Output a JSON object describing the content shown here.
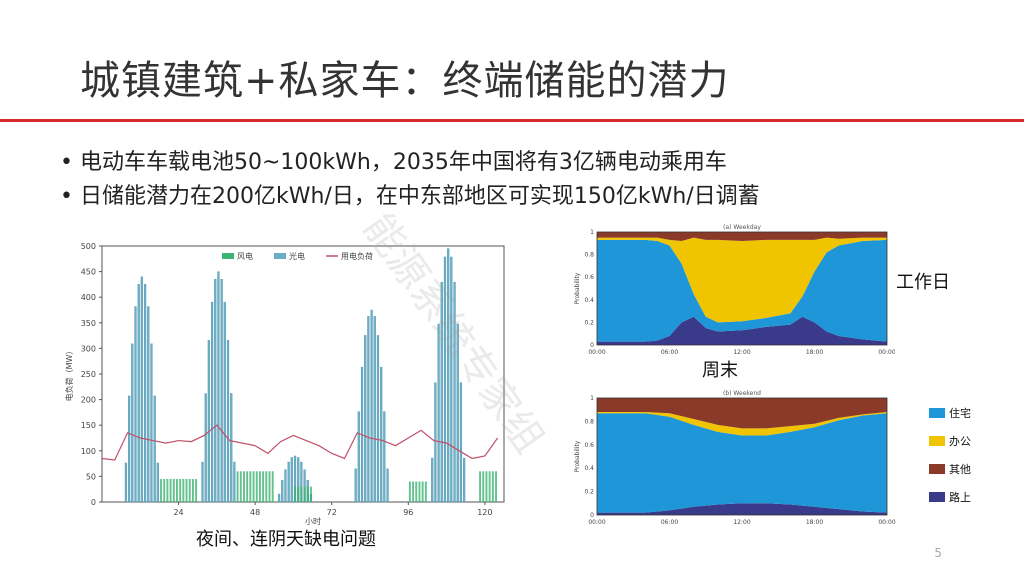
{
  "slide": {
    "title": "城镇建筑+私家车：终端储能的潜力",
    "bullets": [
      "电动车车载电池50~100kWh，2035年中国将有3亿辆电动乘用车",
      "日储能潜力在200亿kWh/日，在中东部地区可实现150亿kWh/日调蓄"
    ],
    "left_caption": "夜间、连阴天缺电问题",
    "weekday_label": "工作日",
    "weekend_label": "周末",
    "page_number": "5",
    "watermark": "能源系统专家组"
  },
  "chart_data": [
    {
      "type": "bar",
      "title": "",
      "xlabel": "小时",
      "ylabel": "电负荷（MW）",
      "ylim": [
        0,
        500
      ],
      "xlim": [
        0,
        126
      ],
      "yticks": [
        "0",
        "50",
        "100",
        "150",
        "200",
        "250",
        "300",
        "350",
        "400",
        "450",
        "500"
      ],
      "xticks": [
        "24",
        "48",
        "72",
        "96",
        "120"
      ],
      "legend": [
        "风电",
        "光电",
        "用电负荷"
      ],
      "colors": {
        "wind": "#3cb371",
        "solar": "#6ab0c8",
        "load": "#c0506a"
      },
      "solar_peaks": [
        {
          "center": 12,
          "peak": 440
        },
        {
          "center": 36,
          "peak": 450
        },
        {
          "center": 60,
          "peak": 90
        },
        {
          "center": 84,
          "peak": 375
        },
        {
          "center": 108,
          "peak": 495
        }
      ],
      "wind_level": [
        {
          "from": 18,
          "to": 30,
          "value": 45
        },
        {
          "from": 42,
          "to": 54,
          "value": 60
        },
        {
          "from": 60,
          "to": 66,
          "value": 30
        },
        {
          "from": 96,
          "to": 102,
          "value": 40
        },
        {
          "from": 118,
          "to": 124,
          "value": 60
        }
      ],
      "load_series": {
        "x": [
          0,
          4,
          8,
          12,
          16,
          20,
          24,
          28,
          32,
          36,
          40,
          44,
          48,
          52,
          56,
          60,
          64,
          68,
          72,
          76,
          80,
          84,
          88,
          92,
          96,
          100,
          104,
          108,
          112,
          116,
          120,
          124
        ],
        "y": [
          85,
          82,
          135,
          125,
          120,
          115,
          120,
          118,
          130,
          150,
          120,
          115,
          110,
          95,
          118,
          130,
          120,
          110,
          95,
          85,
          135,
          125,
          120,
          110,
          125,
          140,
          120,
          115,
          100,
          85,
          90,
          125
        ]
      }
    },
    {
      "type": "area",
      "title": "(a) Weekday",
      "ylabel": "Probability",
      "ylim": [
        0,
        1
      ],
      "xticks": [
        "00:00",
        "06:00",
        "12:00",
        "18:00",
        "00:00"
      ],
      "yticks": [
        "0",
        "0.2",
        "0.4",
        "0.6",
        "0.8",
        "1"
      ],
      "x": [
        0,
        2,
        4,
        5,
        6,
        7,
        8,
        9,
        10,
        12,
        14,
        16,
        17,
        18,
        19,
        20,
        22,
        24
      ],
      "series": [
        {
          "name": "路上",
          "values": [
            0.03,
            0.03,
            0.03,
            0.04,
            0.08,
            0.2,
            0.25,
            0.15,
            0.12,
            0.13,
            0.16,
            0.18,
            0.25,
            0.2,
            0.12,
            0.08,
            0.05,
            0.03
          ]
        },
        {
          "name": "住宅",
          "values": [
            0.9,
            0.9,
            0.9,
            0.88,
            0.8,
            0.52,
            0.2,
            0.1,
            0.08,
            0.08,
            0.08,
            0.1,
            0.18,
            0.45,
            0.7,
            0.8,
            0.87,
            0.9
          ]
        },
        {
          "name": "办公",
          "values": [
            0.02,
            0.02,
            0.02,
            0.03,
            0.05,
            0.2,
            0.5,
            0.68,
            0.73,
            0.71,
            0.69,
            0.65,
            0.5,
            0.28,
            0.13,
            0.06,
            0.03,
            0.02
          ]
        },
        {
          "name": "其他",
          "values": [
            0.05,
            0.05,
            0.05,
            0.05,
            0.07,
            0.08,
            0.05,
            0.07,
            0.07,
            0.08,
            0.07,
            0.07,
            0.07,
            0.07,
            0.05,
            0.06,
            0.05,
            0.05
          ]
        }
      ],
      "colors": [
        "#3a3a8a",
        "#1f96d8",
        "#f0c400",
        "#8b3a2a"
      ]
    },
    {
      "type": "area",
      "title": "(b) Weekend",
      "ylabel": "Probability",
      "ylim": [
        0,
        1
      ],
      "xticks": [
        "00:00",
        "06:00",
        "12:00",
        "18:00",
        "00:00"
      ],
      "yticks": [
        "0",
        "0.2",
        "0.4",
        "0.6",
        "0.8",
        "1"
      ],
      "legend": [
        "住宅",
        "办公",
        "其他",
        "路上"
      ],
      "x": [
        0,
        2,
        4,
        6,
        8,
        10,
        12,
        14,
        16,
        18,
        20,
        22,
        24
      ],
      "series": [
        {
          "name": "路上",
          "values": [
            0.02,
            0.02,
            0.02,
            0.04,
            0.07,
            0.09,
            0.1,
            0.1,
            0.09,
            0.07,
            0.05,
            0.03,
            0.02
          ]
        },
        {
          "name": "住宅",
          "values": [
            0.85,
            0.85,
            0.85,
            0.8,
            0.7,
            0.62,
            0.58,
            0.58,
            0.62,
            0.68,
            0.76,
            0.82,
            0.85
          ]
        },
        {
          "name": "办公",
          "values": [
            0.01,
            0.01,
            0.01,
            0.03,
            0.05,
            0.06,
            0.06,
            0.06,
            0.05,
            0.03,
            0.02,
            0.01,
            0.01
          ]
        },
        {
          "name": "其他",
          "values": [
            0.12,
            0.12,
            0.12,
            0.13,
            0.18,
            0.23,
            0.26,
            0.26,
            0.24,
            0.22,
            0.17,
            0.14,
            0.12
          ]
        }
      ],
      "colors": [
        "#3a3a8a",
        "#1f96d8",
        "#f0c400",
        "#8b3a2a"
      ]
    }
  ]
}
